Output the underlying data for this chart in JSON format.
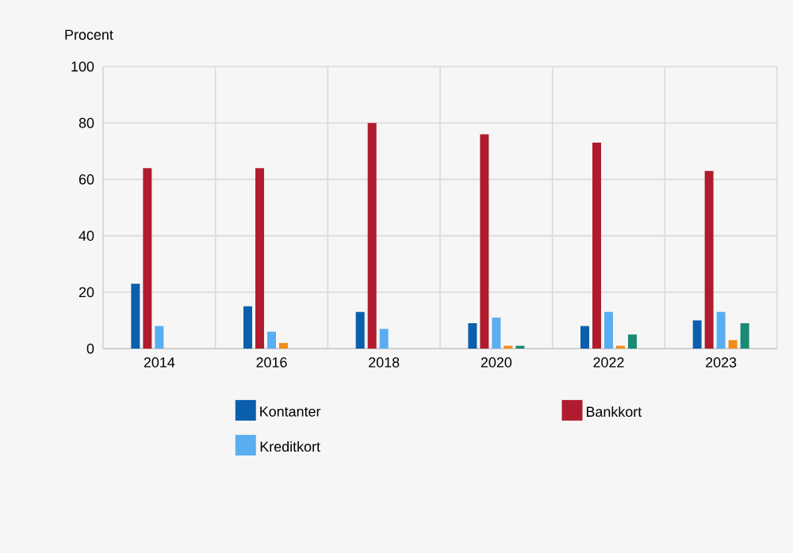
{
  "chart_data": {
    "type": "bar",
    "ylabel": "Procent",
    "categories": [
      "2014",
      "2016",
      "2018",
      "2020",
      "2022",
      "2023"
    ],
    "series": [
      {
        "name": "Kontanter",
        "color": "#0b5fad",
        "values": [
          23,
          15,
          13,
          9,
          8,
          10
        ]
      },
      {
        "name": "Bankkort",
        "color": "#b01c2e",
        "values": [
          64,
          64,
          80,
          76,
          73,
          63
        ]
      },
      {
        "name": "Kreditkort",
        "color": "#5aaef0",
        "values": [
          8,
          6,
          7,
          11,
          13,
          13
        ]
      },
      {
        "color": "#f28c1a",
        "values": [
          null,
          2,
          null,
          1,
          1,
          3
        ]
      },
      {
        "color": "#1a8a73",
        "values": [
          null,
          null,
          null,
          1,
          5,
          9
        ]
      }
    ],
    "ylim": [
      0,
      100
    ],
    "yticks": [
      0,
      20,
      40,
      60,
      80,
      100
    ],
    "grid": true,
    "legend": "bottom"
  }
}
